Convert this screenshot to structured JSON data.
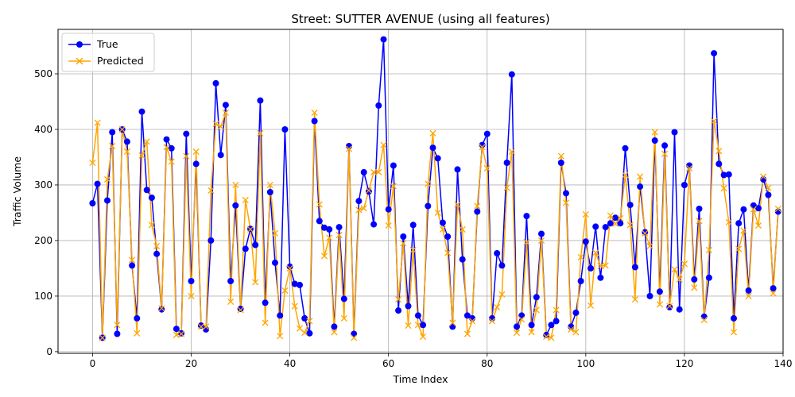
{
  "chart_data": {
    "type": "line",
    "title": "Street: SUTTER AVENUE (using all features)",
    "xlabel": "Time Index",
    "ylabel": "Traffic Volume",
    "xlim": [
      -7,
      140
    ],
    "ylim": [
      -3,
      580
    ],
    "xticks": [
      0,
      20,
      40,
      60,
      80,
      100,
      120,
      140
    ],
    "yticks": [
      0,
      100,
      200,
      300,
      400,
      500
    ],
    "grid": true,
    "legend_position": "top-left",
    "series": [
      {
        "name": "True",
        "color": "#0000ff",
        "marker": "circle",
        "values": [
          267,
          302,
          25,
          272,
          395,
          32,
          400,
          378,
          155,
          60,
          432,
          291,
          277,
          176,
          76,
          382,
          366,
          41,
          33,
          392,
          127,
          338,
          47,
          40,
          200,
          483,
          354,
          444,
          127,
          263,
          77,
          185,
          221,
          192,
          452,
          88,
          287,
          160,
          65,
          400,
          153,
          122,
          120,
          60,
          33,
          415,
          235,
          223,
          220,
          45,
          224,
          95,
          370,
          32,
          271,
          323,
          288,
          229,
          443,
          562,
          256,
          335,
          74,
          207,
          82,
          228,
          65,
          48,
          262,
          367,
          348,
          232,
          207,
          45,
          328,
          166,
          65,
          60,
          252,
          372,
          392,
          60,
          177,
          155,
          340,
          499,
          45,
          65,
          244,
          48,
          98,
          212,
          30,
          48,
          55,
          340,
          285,
          45,
          70,
          127,
          198,
          150,
          225,
          133,
          224,
          231,
          241,
          231,
          366,
          264,
          152,
          297,
          215,
          100,
          380,
          108,
          371,
          80,
          395,
          76,
          300,
          335,
          130,
          257,
          63,
          133,
          537,
          338,
          318,
          319,
          60,
          231,
          256,
          110,
          263,
          258,
          310,
          282,
          114,
          252
        ]
      },
      {
        "name": "Predicted",
        "color": "#ffa500",
        "marker": "x",
        "values": [
          340,
          412,
          25,
          310,
          370,
          48,
          400,
          360,
          165,
          33,
          353,
          378,
          228,
          190,
          78,
          368,
          342,
          30,
          32,
          352,
          100,
          360,
          45,
          45,
          290,
          410,
          405,
          430,
          90,
          300,
          75,
          273,
          220,
          125,
          393,
          52,
          300,
          213,
          28,
          110,
          150,
          82,
          42,
          34,
          55,
          430,
          265,
          172,
          205,
          35,
          210,
          60,
          365,
          25,
          255,
          258,
          290,
          323,
          323,
          372,
          227,
          298,
          94,
          195,
          47,
          183,
          48,
          27,
          302,
          393,
          250,
          220,
          178,
          52,
          265,
          220,
          32,
          55,
          262,
          368,
          330,
          55,
          80,
          103,
          295,
          360,
          34,
          58,
          197,
          35,
          75,
          200,
          27,
          25,
          75,
          352,
          268,
          40,
          35,
          170,
          247,
          83,
          178,
          154,
          155,
          245,
          230,
          240,
          318,
          228,
          94,
          315,
          213,
          190,
          395,
          85,
          356,
          82,
          148,
          130,
          158,
          330,
          115,
          235,
          57,
          183,
          415,
          361,
          294,
          233,
          35,
          185,
          218,
          100,
          256,
          227,
          315,
          295,
          105,
          257
        ]
      }
    ]
  }
}
